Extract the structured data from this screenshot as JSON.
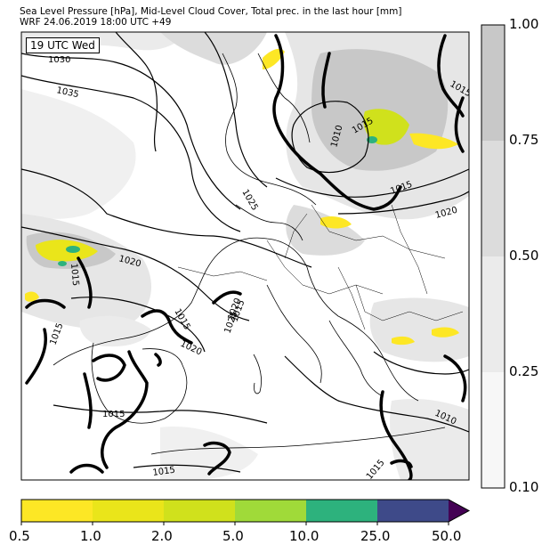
{
  "header": {
    "line1": "Sea Level Pressure [hPa], Mid-Level Cloud Cover, Total prec. in the last hour [mm]",
    "line2": "WRF 24.06.2019 18:00 UTC +49"
  },
  "map": {
    "time_badge": "19 UTC Wed",
    "isobar_labels": [
      "1030",
      "1035",
      "1025",
      "1020",
      "1015",
      "1015",
      "1015",
      "1020",
      "1015",
      "1015",
      "1025",
      "1020",
      "1010",
      "1015",
      "1015",
      "1020",
      "1010",
      "1015",
      "1015",
      "1015"
    ]
  },
  "precip_colorbar": {
    "tick_labels": [
      "0.5",
      "1.0",
      "2.0",
      "5.0",
      "10.0",
      "25.0",
      "50.0"
    ],
    "colors": [
      "#fde725",
      "#eae51a",
      "#d0e11c",
      "#a0da39",
      "#2db27d",
      "#3e4a89",
      "#440154"
    ]
  },
  "cloud_colorbar": {
    "tick_labels": [
      "1.00",
      "0.75",
      "0.50",
      "0.25",
      "0.10"
    ],
    "colors": [
      "#c8c8c8",
      "#dcdcdc",
      "#ebebeb",
      "#f7f7f7"
    ]
  }
}
